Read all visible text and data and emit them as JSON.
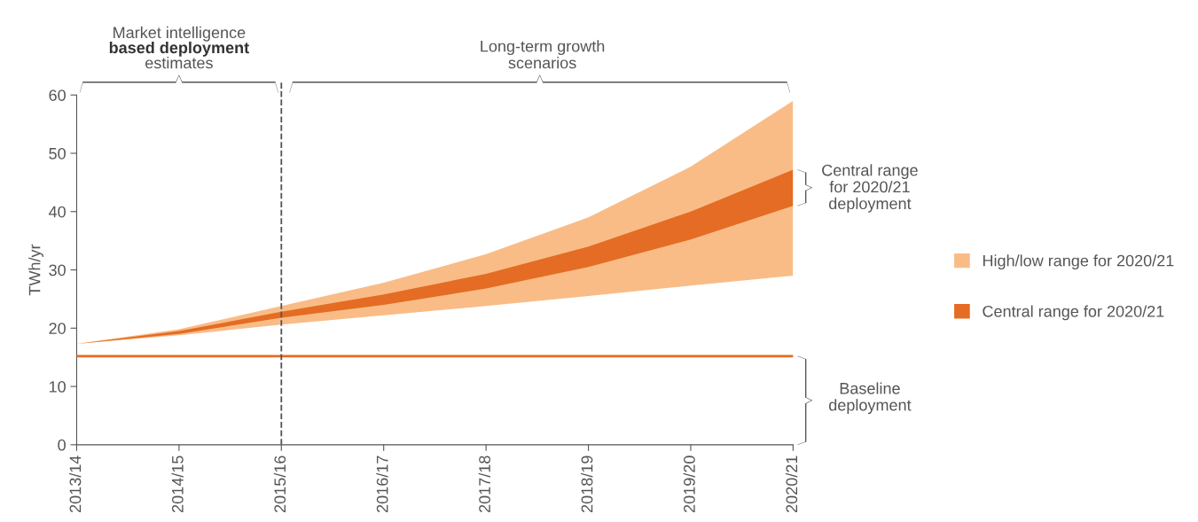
{
  "chart_data": {
    "type": "line",
    "ylabel": "TWh/yr",
    "categories": [
      "2013/14",
      "2014/15",
      "2015/16",
      "2016/17",
      "2017/18",
      "2018/19",
      "2019/20",
      "2020/21"
    ],
    "series": [
      {
        "name": "High/low range for 2020/21",
        "type": "area",
        "color": "#f9bc87",
        "values": [
          null,
          null,
          null,
          null,
          null,
          null,
          null,
          null
        ],
        "upper": [
          17.3,
          19.8,
          23.8,
          27.8,
          32.7,
          39.0,
          47.7,
          59.0
        ],
        "lower": [
          17.3,
          18.8,
          20.6,
          22.2,
          23.8,
          25.5,
          27.3,
          29.0
        ]
      },
      {
        "name": "Central range for 2020/21",
        "type": "area",
        "color": "#e46c24",
        "values": [
          null,
          null,
          null,
          null,
          null,
          null,
          null,
          null
        ],
        "upper": [
          17.3,
          19.5,
          22.8,
          25.8,
          29.3,
          34.0,
          40.0,
          47.2
        ],
        "lower": [
          17.3,
          19.0,
          21.8,
          24.0,
          26.8,
          30.5,
          35.2,
          41.0
        ]
      },
      {
        "color": "#e46c24",
        "values": [
          15.2,
          15.2,
          15.2,
          15.2,
          15.2,
          15.2,
          15.2,
          15.2
        ]
      }
    ],
    "ylim": [
      0,
      60
    ],
    "yticks": [
      0,
      10,
      20,
      30,
      40,
      50,
      60
    ],
    "ref_lines": [
      {
        "axis": "x",
        "value": "2015/16",
        "color": "#555555",
        "line_style": "dashed"
      }
    ],
    "annotations": [
      "Market intelligence\nbased deployment\nestimates",
      "Long-term growth\nscenarios",
      "Central range\nfor 2020/21\ndeployment",
      "Baseline\ndeployment"
    ],
    "grid": false,
    "legend": "right"
  }
}
